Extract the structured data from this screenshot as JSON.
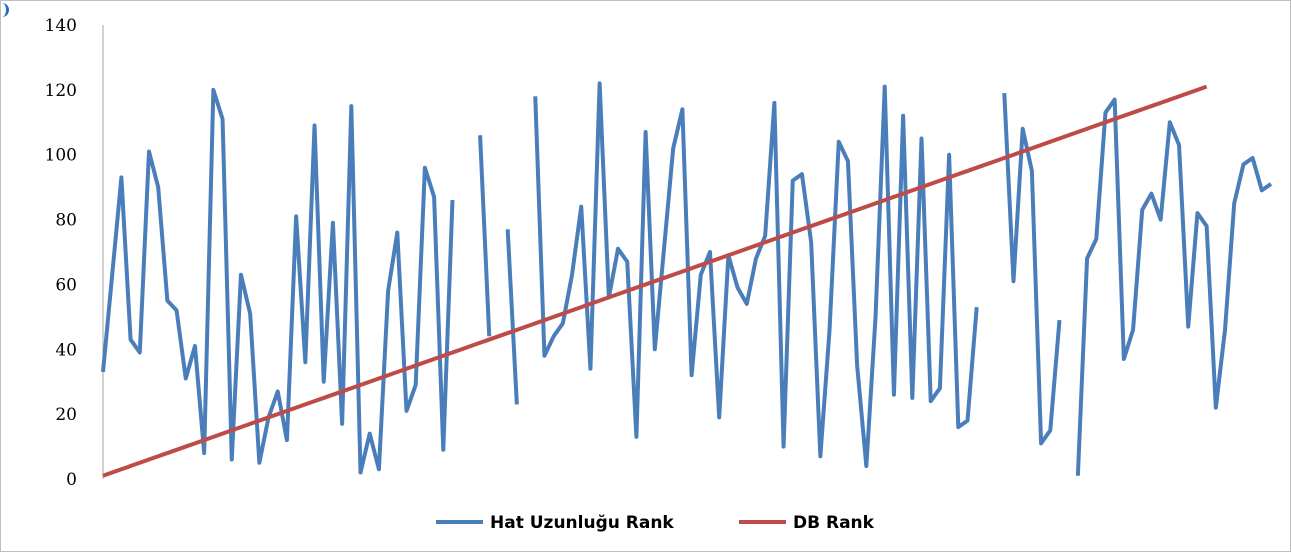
{
  "chart_data": {
    "type": "line",
    "title": "",
    "xlabel": "",
    "ylabel": "",
    "ylim": [
      0,
      140
    ],
    "yticks": [
      0,
      20,
      40,
      60,
      80,
      100,
      120,
      140
    ],
    "grid": false,
    "legend_position": "bottom",
    "series": [
      {
        "name": "Hat Uzunluğu Rank",
        "color": "#4a7ebb",
        "values": [
          33,
          63,
          93,
          43,
          39,
          101,
          90,
          55,
          52,
          31,
          41,
          8,
          120,
          111,
          6,
          63,
          51,
          5,
          19,
          27,
          12,
          81,
          36,
          109,
          30,
          79,
          17,
          115,
          2,
          14,
          3,
          58,
          76,
          21,
          29,
          96,
          87,
          9,
          86,
          null,
          null,
          106,
          44,
          null,
          77,
          23,
          null,
          118,
          38,
          44,
          48,
          63,
          84,
          34,
          122,
          56,
          71,
          67,
          13,
          107,
          40,
          71,
          102,
          114,
          32,
          63,
          70,
          19,
          69,
          59,
          54,
          68,
          75,
          116,
          10,
          92,
          94,
          73,
          7,
          46,
          104,
          98,
          35,
          4,
          50,
          121,
          26,
          112,
          25,
          105,
          24,
          28,
          100,
          16,
          18,
          53,
          null,
          null,
          119,
          61,
          108,
          95,
          11,
          15,
          49,
          null,
          1,
          68,
          74,
          113,
          117,
          37,
          46,
          83,
          88,
          80,
          110,
          103,
          47,
          82,
          78,
          22,
          46,
          85,
          97,
          99,
          89,
          91
        ]
      },
      {
        "name": "DB Rank",
        "color": "#be4b48",
        "start": 1,
        "end": 121,
        "points": 121
      }
    ]
  }
}
